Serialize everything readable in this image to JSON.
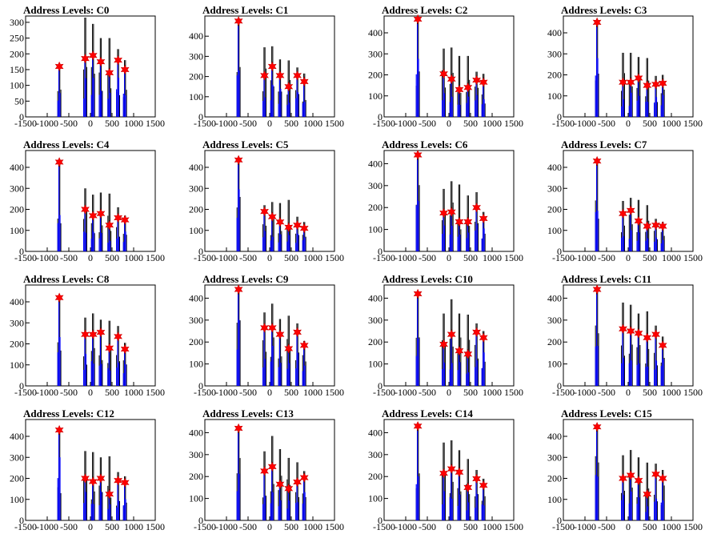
{
  "chart_data": {
    "type": "bar",
    "layout": "grid 4x4 small multiples",
    "x_ticks": [
      "-1500",
      "-1000",
      "-500",
      "0",
      "500",
      "1000",
      "1500"
    ],
    "xlim": [
      -1500,
      1500
    ],
    "peak_x": [
      -720,
      -120,
      60,
      240,
      440,
      640,
      800
    ],
    "colors": {
      "bar_blue": "#0000ff",
      "bar_black": "#000000",
      "star": "#ff0000"
    },
    "panels": [
      {
        "title": "Address Levels: C0",
        "ylim": [
          0,
          320
        ],
        "y_ticks": [
          "0",
          "50",
          "100",
          "150",
          "200",
          "250",
          "300"
        ],
        "peaks": [
          160,
          185,
          195,
          175,
          140,
          180,
          150
        ],
        "black_extra": [
          5,
          130,
          100,
          75,
          110,
          35,
          30
        ]
      },
      {
        "title": "Address Levels: C1",
        "ylim": [
          0,
          500
        ],
        "y_ticks": [
          "0",
          "100",
          "200",
          "300",
          "400"
        ],
        "peaks": [
          475,
          205,
          250,
          205,
          150,
          205,
          175
        ],
        "black_extra": [
          0,
          140,
          100,
          80,
          130,
          40,
          40
        ]
      },
      {
        "title": "Address Levels: C2",
        "ylim": [
          0,
          480
        ],
        "y_ticks": [
          "0",
          "100",
          "200",
          "300",
          "400"
        ],
        "peaks": [
          465,
          205,
          180,
          130,
          140,
          175,
          165
        ],
        "black_extra": [
          0,
          120,
          150,
          160,
          150,
          40,
          40
        ]
      },
      {
        "title": "Address Levels: C3",
        "ylim": [
          0,
          480
        ],
        "y_ticks": [
          "0",
          "100",
          "200",
          "300",
          "400"
        ],
        "peaks": [
          450,
          165,
          165,
          185,
          150,
          155,
          160
        ],
        "black_extra": [
          0,
          140,
          140,
          100,
          130,
          40,
          40
        ]
      },
      {
        "title": "Address Levels: C4",
        "ylim": [
          0,
          480
        ],
        "y_ticks": [
          "0",
          "100",
          "200",
          "300",
          "400"
        ],
        "peaks": [
          425,
          200,
          170,
          180,
          125,
          160,
          150
        ],
        "black_extra": [
          0,
          100,
          100,
          100,
          150,
          50,
          20
        ]
      },
      {
        "title": "Address Levels: C5",
        "ylim": [
          0,
          480
        ],
        "y_ticks": [
          "0",
          "100",
          "200",
          "300",
          "400"
        ],
        "peaks": [
          435,
          190,
          165,
          140,
          115,
          125,
          110
        ],
        "black_extra": [
          0,
          30,
          70,
          90,
          130,
          40,
          30
        ]
      },
      {
        "title": "Address Levels: C6",
        "ylim": [
          0,
          460
        ],
        "y_ticks": [
          "0",
          "100",
          "200",
          "300",
          "400"
        ],
        "peaks": [
          440,
          175,
          180,
          135,
          135,
          200,
          150
        ],
        "black_extra": [
          0,
          110,
          140,
          170,
          120,
          70,
          30
        ]
      },
      {
        "title": "Address Levels: C7",
        "ylim": [
          0,
          480
        ],
        "y_ticks": [
          "0",
          "100",
          "200",
          "300",
          "400"
        ],
        "peaks": [
          430,
          180,
          195,
          145,
          120,
          125,
          120
        ],
        "black_extra": [
          0,
          60,
          60,
          100,
          100,
          30,
          20
        ]
      },
      {
        "title": "Address Levels: C8",
        "ylim": [
          0,
          480
        ],
        "y_ticks": [
          "0",
          "100",
          "200",
          "300",
          "400"
        ],
        "peaks": [
          420,
          245,
          245,
          255,
          180,
          235,
          175
        ],
        "black_extra": [
          0,
          80,
          100,
          60,
          130,
          50,
          30
        ]
      },
      {
        "title": "Address Levels: C9",
        "ylim": [
          0,
          460
        ],
        "y_ticks": [
          "0",
          "100",
          "200",
          "300",
          "400"
        ],
        "peaks": [
          440,
          265,
          265,
          235,
          170,
          245,
          185
        ],
        "black_extra": [
          0,
          70,
          110,
          70,
          150,
          40,
          20
        ]
      },
      {
        "title": "Address Levels: C10",
        "ylim": [
          0,
          460
        ],
        "y_ticks": [
          "0",
          "100",
          "200",
          "300",
          "400"
        ],
        "peaks": [
          420,
          190,
          235,
          160,
          145,
          245,
          220
        ],
        "black_extra": [
          0,
          140,
          160,
          170,
          180,
          40,
          30
        ]
      },
      {
        "title": "Address Levels: C11",
        "ylim": [
          0,
          460
        ],
        "y_ticks": [
          "0",
          "100",
          "200",
          "300",
          "400"
        ],
        "peaks": [
          440,
          260,
          250,
          240,
          220,
          235,
          185
        ],
        "black_extra": [
          0,
          120,
          120,
          90,
          120,
          40,
          40
        ]
      },
      {
        "title": "Address Levels: C12",
        "ylim": [
          0,
          480
        ],
        "y_ticks": [
          "0",
          "100",
          "200",
          "300",
          "400"
        ],
        "peaks": [
          430,
          200,
          185,
          200,
          125,
          190,
          180
        ],
        "black_extra": [
          0,
          130,
          140,
          100,
          180,
          40,
          30
        ]
      },
      {
        "title": "Address Levels: C13",
        "ylim": [
          0,
          460
        ],
        "y_ticks": [
          "0",
          "100",
          "200",
          "300",
          "400"
        ],
        "peaks": [
          420,
          225,
          245,
          165,
          145,
          175,
          195
        ],
        "black_extra": [
          0,
          90,
          140,
          160,
          140,
          90,
          30
        ]
      },
      {
        "title": "Address Levels: C14",
        "ylim": [
          0,
          460
        ],
        "y_ticks": [
          "0",
          "100",
          "200",
          "300",
          "400"
        ],
        "peaks": [
          430,
          215,
          235,
          220,
          150,
          190,
          160
        ],
        "black_extra": [
          0,
          140,
          130,
          100,
          130,
          40,
          30
        ]
      },
      {
        "title": "Address Levels: C15",
        "ylim": [
          0,
          480
        ],
        "y_ticks": [
          "0",
          "100",
          "200",
          "300",
          "400"
        ],
        "peaks": [
          445,
          200,
          215,
          190,
          125,
          220,
          200
        ],
        "black_extra": [
          0,
          110,
          120,
          110,
          150,
          50,
          40
        ]
      }
    ]
  }
}
